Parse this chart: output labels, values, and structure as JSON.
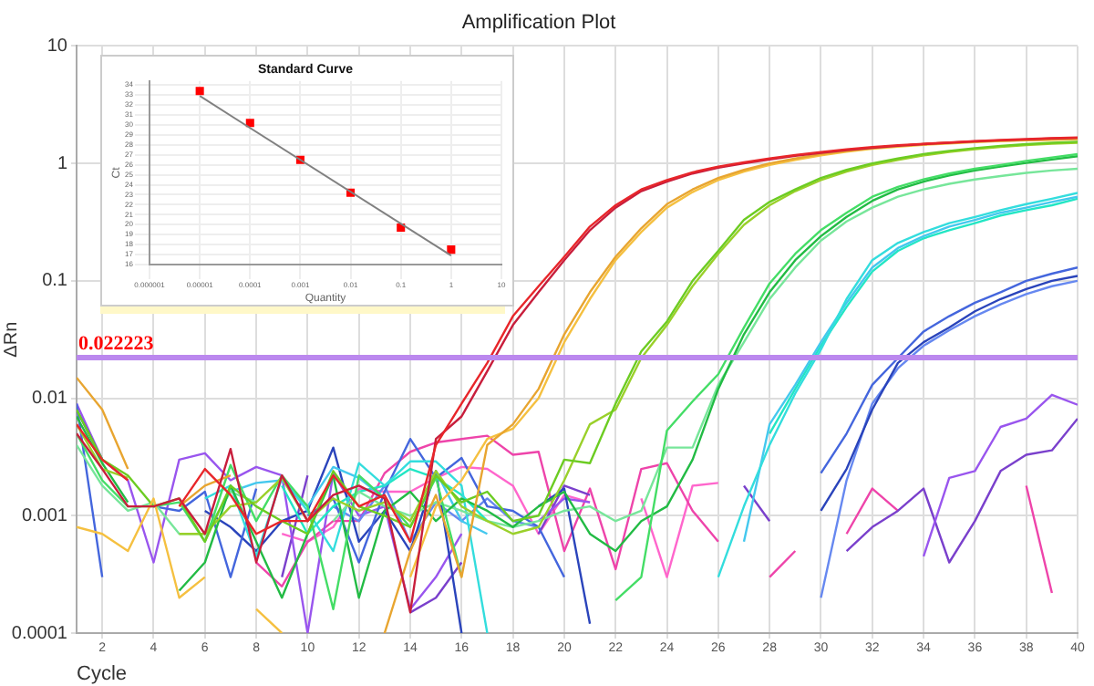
{
  "chart_data": [
    {
      "type": "line",
      "title": "Amplification Plot",
      "xlabel": "Cycle",
      "ylabel": "ΔRn",
      "log": "y",
      "grid": true,
      "legend": false,
      "marker": "none",
      "line_style": "solid",
      "x": [
        1,
        2,
        3,
        4,
        5,
        6,
        7,
        8,
        9,
        10,
        11,
        12,
        13,
        14,
        15,
        16,
        17,
        18,
        19,
        20,
        21,
        22,
        23,
        24,
        25,
        26,
        27,
        28,
        29,
        30,
        31,
        32,
        33,
        34,
        35,
        36,
        37,
        38,
        39,
        40
      ],
      "xlim": [
        1,
        40
      ],
      "xticks": [
        2,
        4,
        6,
        8,
        10,
        12,
        14,
        16,
        18,
        20,
        22,
        24,
        26,
        28,
        30,
        32,
        34,
        36,
        38,
        40
      ],
      "ylim": [
        0.0001,
        10
      ],
      "yticks": [
        0.0001,
        0.001,
        0.01,
        0.1,
        1,
        10
      ],
      "ref_lines": [
        {
          "axis": "y",
          "value": 0.022223,
          "label": "0.022223",
          "color": "#bb88ee"
        }
      ],
      "series": [
        {
          "color": "#e8262a",
          "values": [
            0.006,
            0.003,
            0.002,
            null,
            0.0012,
            0.0025,
            0.0015,
            0.0007,
            0.0009,
            0.0009,
            0.0022,
            0.0012,
            0.0015,
            0.0006,
            0.004,
            0.009,
            0.02,
            0.05,
            0.09,
            0.16,
            0.29,
            0.44,
            0.6,
            0.72,
            0.84,
            0.94,
            1.02,
            1.1,
            1.18,
            1.25,
            1.32,
            1.38,
            1.43,
            1.47,
            1.51,
            1.55,
            1.58,
            1.61,
            1.64,
            1.66
          ]
        },
        {
          "color": "#c81e3c",
          "values": [
            0.005,
            0.0025,
            0.0012,
            0.0012,
            0.0014,
            0.0007,
            0.0037,
            0.0004,
            0.0022,
            0.0009,
            0.0015,
            0.0018,
            0.0014,
            0.00015,
            0.0045,
            0.007,
            0.017,
            0.042,
            0.08,
            0.15,
            0.27,
            0.42,
            0.58,
            0.7,
            0.82,
            0.92,
            1.0,
            1.08,
            1.16,
            1.23,
            1.3,
            1.36,
            1.41,
            1.46,
            1.5,
            1.54,
            1.57,
            1.6,
            1.63,
            1.65
          ]
        },
        {
          "color": "#e8a530",
          "values": [
            0.015,
            0.008,
            0.0025,
            null,
            0.0012,
            0.0018,
            0.0022,
            null,
            null,
            null,
            null,
            null,
            0.0001,
            0.0005,
            0.0015,
            0.0003,
            0.004,
            0.006,
            0.012,
            0.035,
            0.08,
            0.16,
            0.28,
            0.45,
            0.6,
            0.75,
            0.88,
            1.0,
            1.1,
            1.2,
            1.28,
            1.35,
            1.41,
            1.46,
            1.5,
            1.53,
            1.56,
            1.58,
            1.6,
            1.62
          ]
        },
        {
          "color": "#f5c040",
          "values": [
            0.0008,
            0.0007,
            0.0005,
            0.0014,
            0.0002,
            0.0003,
            null,
            0.00016,
            0.0001,
            null,
            null,
            null,
            null,
            0.0003,
            0.0012,
            0.002,
            0.0045,
            0.0055,
            0.01,
            0.03,
            0.07,
            0.15,
            0.26,
            0.42,
            0.57,
            0.72,
            0.85,
            0.97,
            1.07,
            1.17,
            1.26,
            1.33,
            1.39,
            1.44,
            1.48,
            1.52,
            1.55,
            1.57,
            1.59,
            1.61
          ]
        },
        {
          "color": "#6ccc22",
          "values": [
            0.008,
            0.003,
            0.0022,
            0.0012,
            0.0014,
            0.0006,
            0.0018,
            0.0012,
            0.0009,
            0.0007,
            0.0024,
            0.0012,
            0.001,
            0.0008,
            0.0022,
            0.0013,
            0.0016,
            0.0009,
            0.001,
            0.003,
            0.0028,
            0.009,
            0.025,
            0.045,
            0.1,
            0.18,
            0.33,
            0.47,
            0.6,
            0.75,
            0.88,
            1.0,
            1.1,
            1.2,
            1.28,
            1.35,
            1.41,
            1.46,
            1.5,
            1.53
          ]
        },
        {
          "color": "#9ad02a",
          "values": [
            0.006,
            0.0025,
            0.0021,
            null,
            0.0007,
            0.0007,
            0.0012,
            0.0013,
            0.0021,
            0.0009,
            0.0014,
            0.0011,
            0.0013,
            0.0009,
            0.0024,
            0.0012,
            0.0009,
            0.0007,
            0.0008,
            0.002,
            0.006,
            0.008,
            0.022,
            0.042,
            0.09,
            0.17,
            0.3,
            0.44,
            0.58,
            0.72,
            0.85,
            0.97,
            1.07,
            1.17,
            1.25,
            1.32,
            1.38,
            1.43,
            1.47,
            1.5
          ]
        },
        {
          "color": "#44dd66",
          "values": [
            0.005,
            0.002,
            0.0012,
            0.0012,
            0.0013,
            0.0006,
            0.0027,
            0.0009,
            0.0022,
            0.0012,
            0.00016,
            0.0022,
            0.0014,
            0.0008,
            0.0021,
            0.0003,
            null,
            null,
            null,
            null,
            null,
            0.00019,
            0.0003,
            0.0053,
            0.0094,
            0.016,
            0.04,
            0.095,
            0.17,
            0.27,
            0.38,
            0.52,
            0.63,
            0.73,
            0.82,
            0.9,
            0.97,
            1.05,
            1.12,
            1.2
          ]
        },
        {
          "color": "#22bb44",
          "values": [
            0.007,
            0.0028,
            0.0013,
            null,
            0.00023,
            0.0004,
            0.0018,
            0.0006,
            0.0002,
            0.0007,
            0.0022,
            0.0002,
            0.0011,
            0.0016,
            0.0009,
            0.0014,
            0.0011,
            0.0008,
            0.0012,
            0.0016,
            0.0007,
            0.0005,
            0.0009,
            0.0012,
            0.003,
            0.012,
            0.035,
            0.08,
            0.15,
            0.24,
            0.35,
            0.48,
            0.6,
            0.7,
            0.79,
            0.87,
            0.94,
            1.01,
            1.08,
            1.15
          ]
        },
        {
          "color": "#77e69a",
          "values": [
            0.004,
            0.0018,
            0.0011,
            0.0013,
            0.0007,
            0.0007,
            0.0016,
            0.0013,
            null,
            null,
            0.0009,
            0.0016,
            0.0012,
            0.001,
            0.0013,
            0.0011,
            0.0009,
            0.0008,
            0.0009,
            0.0011,
            0.0012,
            0.0009,
            0.0011,
            0.0038,
            0.0038,
            0.013,
            0.03,
            0.07,
            0.13,
            0.22,
            0.32,
            0.42,
            0.52,
            0.6,
            0.67,
            0.73,
            0.78,
            0.83,
            0.87,
            0.9
          ]
        },
        {
          "color": "#33dddd",
          "values": [
            null,
            null,
            null,
            null,
            null,
            0.0014,
            0.0018,
            0.00045,
            0.0021,
            0.0011,
            0.0005,
            0.0028,
            0.0018,
            0.0029,
            0.0029,
            0.0018,
            0.0001,
            null,
            null,
            null,
            null,
            null,
            null,
            null,
            null,
            0.0003,
            0.0012,
            0.004,
            0.011,
            0.026,
            0.07,
            0.15,
            0.21,
            0.26,
            0.31,
            0.35,
            0.4,
            0.45,
            0.5,
            0.56
          ]
        },
        {
          "color": "#44c8ee",
          "values": [
            null,
            null,
            null,
            null,
            null,
            null,
            0.0016,
            0.0019,
            0.002,
            0.0012,
            0.0026,
            0.0021,
            0.0014,
            null,
            0.0024,
            0.0009,
            0.0007,
            null,
            null,
            null,
            null,
            null,
            null,
            null,
            null,
            null,
            0.0006,
            0.006,
            0.013,
            0.03,
            0.065,
            0.13,
            0.19,
            0.24,
            0.29,
            0.33,
            0.38,
            0.42,
            0.47,
            0.52
          ]
        },
        {
          "color": "#22e6c4",
          "values": [
            null,
            null,
            null,
            null,
            null,
            null,
            null,
            null,
            0.0018,
            0.0007,
            0.0012,
            0.0016,
            0.0018,
            0.0025,
            0.0021,
            0.0015,
            0.0009,
            null,
            null,
            null,
            null,
            null,
            null,
            null,
            null,
            null,
            null,
            0.005,
            0.012,
            0.028,
            0.06,
            0.12,
            0.18,
            0.23,
            0.27,
            0.31,
            0.36,
            0.4,
            0.44,
            0.5
          ]
        },
        {
          "color": "#4466dd",
          "values": [
            0.009,
            0.0003,
            null,
            0.0012,
            0.0011,
            0.0016,
            0.0003,
            0.0017,
            null,
            0.001,
            0.0014,
            0.0004,
            0.0016,
            0.0045,
            0.0021,
            0.0031,
            0.0012,
            0.0011,
            0.0008,
            0.0003,
            null,
            null,
            null,
            null,
            null,
            null,
            null,
            null,
            null,
            0.0023,
            0.005,
            0.013,
            0.022,
            0.037,
            0.05,
            0.065,
            0.08,
            0.1,
            0.115,
            0.13
          ]
        },
        {
          "color": "#2a44bb",
          "values": [
            0.008,
            0.003,
            null,
            null,
            null,
            0.0011,
            0.0008,
            0.0005,
            0.0009,
            0.0011,
            0.0038,
            0.0006,
            0.0011,
            0.0005,
            0.0024,
            0.0001,
            null,
            null,
            0.0012,
            0.0017,
            0.00012,
            null,
            null,
            null,
            null,
            null,
            null,
            null,
            null,
            0.0011,
            0.0025,
            0.008,
            0.02,
            0.03,
            0.04,
            0.055,
            0.07,
            0.085,
            0.1,
            0.11
          ]
        },
        {
          "color": "#6688f0",
          "values": [
            null,
            null,
            null,
            null,
            null,
            null,
            null,
            null,
            null,
            null,
            0.0012,
            0.0009,
            0.0018,
            0.0006,
            0.0013,
            0.0009,
            0.0014,
            0.0009,
            0.0008,
            null,
            null,
            null,
            null,
            null,
            null,
            null,
            null,
            null,
            null,
            0.0002,
            0.002,
            0.009,
            0.018,
            0.028,
            0.038,
            0.05,
            0.063,
            0.077,
            0.09,
            0.1
          ]
        },
        {
          "color": "#9955ee",
          "values": [
            0.009,
            0.003,
            0.002,
            0.0004,
            0.003,
            0.0034,
            0.002,
            0.0026,
            0.0022,
            0.0001,
            0.0023,
            0.001,
            0.0012,
            0.00016,
            0.0003,
            0.0007,
            null,
            null,
            0.0009,
            0.0014,
            0.0013,
            null,
            null,
            null,
            null,
            null,
            null,
            null,
            null,
            null,
            null,
            null,
            null,
            0.00045,
            0.0021,
            0.0024,
            0.0057,
            0.0067,
            0.0107,
            0.0088
          ]
        },
        {
          "color": "#7a40cc",
          "values": [
            null,
            null,
            null,
            null,
            null,
            null,
            null,
            null,
            0.0003,
            0.0022,
            null,
            null,
            null,
            0.00015,
            0.0002,
            0.0004,
            null,
            null,
            0.0007,
            0.0018,
            0.0015,
            null,
            null,
            null,
            null,
            null,
            0.0018,
            0.0009,
            null,
            null,
            0.0005,
            0.0008,
            0.0011,
            0.0017,
            0.0004,
            0.0009,
            0.0024,
            0.0033,
            0.0036,
            0.0067
          ]
        },
        {
          "color": "#ee44aa",
          "values": [
            null,
            null,
            null,
            null,
            null,
            null,
            null,
            0.0004,
            0.00025,
            0.0006,
            0.0009,
            0.0009,
            0.0023,
            0.0035,
            0.0042,
            0.0045,
            0.0048,
            0.0033,
            0.0035,
            0.0005,
            0.0017,
            0.00035,
            0.0025,
            0.0028,
            0.0011,
            0.0006,
            null,
            0.0003,
            0.0005,
            null,
            0.0007,
            0.0017,
            0.0011,
            null,
            null,
            null,
            null,
            0.0018,
            0.00022,
            null
          ]
        },
        {
          "color": "#ff66cc",
          "values": [
            null,
            null,
            null,
            null,
            null,
            null,
            null,
            null,
            0.0007,
            0.0006,
            0.0008,
            0.0017,
            0.0016,
            0.0016,
            0.0021,
            0.0026,
            0.0025,
            0.0018,
            0.0007,
            0.0015,
            0.0013,
            null,
            0.0014,
            0.0003,
            0.0018,
            0.0019,
            null,
            null,
            null,
            null,
            null,
            null,
            null,
            null,
            null,
            null,
            null,
            null,
            null,
            null
          ]
        }
      ]
    },
    {
      "type": "scatter",
      "title": "Standard Curve",
      "xlabel": "Quantity",
      "ylabel": "Ct",
      "log": "x",
      "grid": true,
      "legend": false,
      "x": [
        1e-05,
        0.0001,
        0.001,
        0.01,
        0.1,
        1
      ],
      "xlim": [
        1e-06,
        10
      ],
      "xticks": [
        {
          "value": 1e-06,
          "label": "0.000001"
        },
        {
          "value": 1e-05,
          "label": "0.00001"
        },
        0.0001,
        0.001,
        0.01,
        0.1,
        1,
        10
      ],
      "ylim": [
        16,
        34.4
      ],
      "yticks": [
        16,
        17,
        18,
        19,
        20,
        21,
        22,
        23,
        24,
        25,
        26,
        27,
        28,
        29,
        30,
        31,
        32,
        33,
        34
      ],
      "series": [
        {
          "type": "line",
          "color": "#808080",
          "marker": "none",
          "x": [
            1e-05,
            1
          ],
          "values": [
            32.9,
            16.9
          ]
        },
        {
          "type": "scatter",
          "color": "#ff0000",
          "marker": "square",
          "values": [
            33.4,
            30.2,
            26.5,
            23.2,
            19.7,
            17.5
          ]
        }
      ]
    }
  ]
}
